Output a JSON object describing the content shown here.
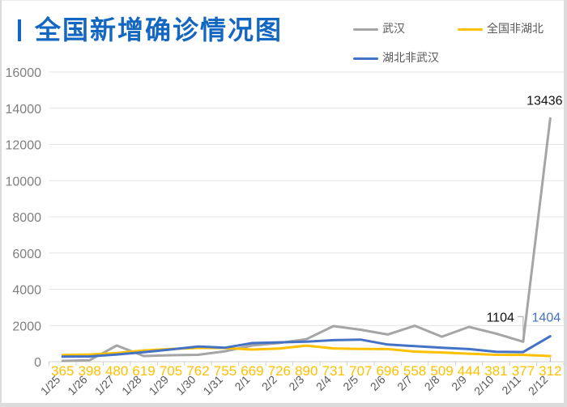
{
  "chart_data": {
    "type": "line",
    "title": "全国新增确诊情况图",
    "xlabel": "",
    "ylabel": "",
    "categories": [
      "1/25",
      "1/26",
      "1/27",
      "1/28",
      "1/29",
      "1/30",
      "1/31",
      "2/1",
      "2/2",
      "2/3",
      "2/4",
      "2/5",
      "2/6",
      "2/7",
      "2/8",
      "2/9",
      "2/10",
      "2/11",
      "2/12"
    ],
    "ylim": [
      0,
      16000
    ],
    "yticks": [
      0,
      2000,
      4000,
      6000,
      8000,
      10000,
      12000,
      14000,
      16000
    ],
    "ytick_labels": [
      "0",
      "2000",
      "4000",
      "6000",
      "8000",
      "10000",
      "12000",
      "14000",
      "16000"
    ],
    "grid": true,
    "legend_position": "top-right",
    "series": [
      {
        "name": "武汉",
        "color": "#a5a5a5",
        "values": [
          46,
          80,
          892,
          315,
          356,
          378,
          576,
          894,
          1033,
          1242,
          1967,
          1766,
          1501,
          1985,
          1379,
          1921,
          1552,
          1104,
          13436
        ],
        "data_labels": [
          null,
          null,
          null,
          null,
          null,
          null,
          null,
          null,
          null,
          null,
          null,
          null,
          null,
          null,
          null,
          null,
          null,
          "1104",
          "13436"
        ]
      },
      {
        "name": "全国非湖北",
        "color": "#ffc000",
        "values": [
          365,
          398,
          480,
          619,
          705,
          762,
          755,
          669,
          726,
          890,
          731,
          707,
          696,
          558,
          509,
          444,
          381,
          377,
          312
        ],
        "data_labels": [
          "365",
          "398",
          "480",
          "619",
          "705",
          "762",
          "755",
          "669",
          "726",
          "890",
          "731",
          "707",
          "696",
          "558",
          "509",
          "444",
          "381",
          "377",
          "312"
        ]
      },
      {
        "name": "湖北非武汉",
        "color": "#4472c4",
        "values": [
          277,
          291,
          399,
          525,
          676,
          842,
          771,
          1027,
          1070,
          1103,
          1189,
          1221,
          946,
          856,
          768,
          697,
          545,
          534,
          1404
        ],
        "data_labels": [
          null,
          null,
          null,
          null,
          null,
          null,
          null,
          null,
          null,
          null,
          null,
          null,
          null,
          null,
          null,
          null,
          null,
          null,
          "1404"
        ]
      }
    ]
  }
}
